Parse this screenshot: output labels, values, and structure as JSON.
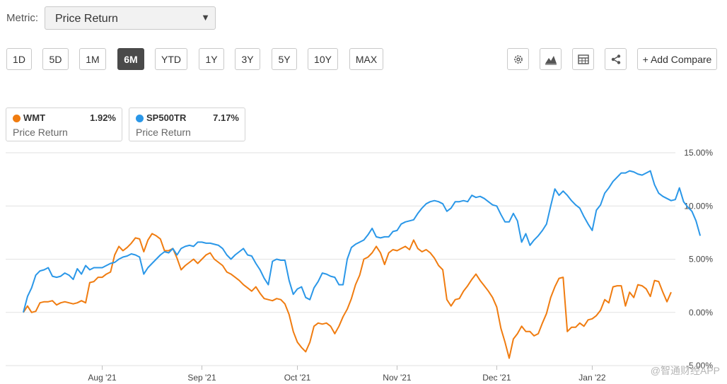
{
  "metric": {
    "label": "Metric:",
    "value": "Price Return"
  },
  "ranges": [
    {
      "label": "1D",
      "active": false
    },
    {
      "label": "5D",
      "active": false
    },
    {
      "label": "1M",
      "active": false
    },
    {
      "label": "6M",
      "active": true
    },
    {
      "label": "YTD",
      "active": false
    },
    {
      "label": "1Y",
      "active": false
    },
    {
      "label": "3Y",
      "active": false
    },
    {
      "label": "5Y",
      "active": false
    },
    {
      "label": "10Y",
      "active": false
    },
    {
      "label": "MAX",
      "active": false
    }
  ],
  "tools": {
    "icons": [
      "gear-icon",
      "mountain-chart-icon",
      "table-icon",
      "share-icon"
    ],
    "add_compare": "+ Add Compare"
  },
  "legend": [
    {
      "ticker": "WMT",
      "pct": "1.92%",
      "sub": "Price Return",
      "color": "#f07c10"
    },
    {
      "ticker": "SP500TR",
      "pct": "7.17%",
      "sub": "Price Return",
      "color": "#2a97e8"
    }
  ],
  "watermark": "@智通财经APP",
  "chart_data": {
    "type": "line",
    "yticks": [
      "15.00%",
      "10.00%",
      "5.00%",
      "0.00%",
      "-5.00%"
    ],
    "ylim": [
      -5,
      15
    ],
    "xtick_labels": [
      "Aug '21",
      "Sep '21",
      "Oct '21",
      "Nov '21",
      "Dec '21",
      "Jan '22"
    ],
    "xtick_index": [
      19,
      43,
      66,
      90,
      114,
      137
    ],
    "grid": true,
    "series": [
      {
        "name": "WMT",
        "color": "#f07c10",
        "values": [
          0,
          0.6,
          0,
          0.1,
          0.9,
          1.0,
          1.0,
          1.1,
          0.7,
          0.9,
          1.0,
          0.9,
          0.8,
          0.9,
          1.1,
          0.9,
          2.8,
          2.9,
          3.3,
          3.3,
          3.6,
          3.8,
          5.4,
          6.2,
          5.8,
          6.1,
          6.5,
          7.0,
          6.9,
          5.7,
          6.8,
          7.4,
          7.2,
          6.9,
          5.8,
          5.8,
          6.0,
          5.1,
          4.0,
          4.4,
          4.7,
          5.0,
          4.6,
          5.0,
          5.4,
          5.6,
          5.0,
          4.7,
          4.4,
          3.8,
          3.6,
          3.3,
          3.0,
          2.6,
          2.3,
          2.0,
          2.4,
          1.8,
          1.3,
          1.2,
          1.1,
          1.3,
          1.2,
          0.8,
          -0.2,
          -1.8,
          -2.8,
          -3.3,
          -3.7,
          -2.8,
          -1.3,
          -1.0,
          -1.1,
          -1.0,
          -1.3,
          -2.0,
          -1.3,
          -0.4,
          0.3,
          1.3,
          2.6,
          3.5,
          5.0,
          5.2,
          5.6,
          6.2,
          5.6,
          4.5,
          5.6,
          5.9,
          5.8,
          6.0,
          6.2,
          5.9,
          6.8,
          6.0,
          5.7,
          5.9,
          5.6,
          5.1,
          4.4,
          4.0,
          1.2,
          0.6,
          1.2,
          1.3,
          2.0,
          2.5,
          3.1,
          3.6,
          3.0,
          2.5,
          2.0,
          1.4,
          0.5,
          -1.5,
          -2.8,
          -4.3,
          -2.5,
          -2.0,
          -1.3,
          -1.8,
          -1.8,
          -2.2,
          -2.0,
          -1.0,
          -0.1,
          1.4,
          2.4,
          3.2,
          3.3,
          -1.8,
          -1.4,
          -1.4,
          -1.0,
          -1.3,
          -0.7,
          -0.6,
          -0.3,
          0.2,
          1.2,
          0.9,
          2.4,
          2.5,
          2.5,
          0.6,
          1.9,
          1.4,
          2.6,
          2.5,
          2.2,
          1.5,
          3.0,
          2.9,
          1.9,
          1.0,
          1.9
        ]
      },
      {
        "name": "SP500TR",
        "color": "#2a97e8",
        "values": [
          0,
          1.5,
          2.3,
          3.5,
          3.9,
          4.0,
          4.2,
          3.4,
          3.3,
          3.4,
          3.7,
          3.5,
          3.1,
          4.1,
          3.6,
          4.4,
          4.0,
          4.2,
          4.2,
          4.2,
          4.4,
          4.6,
          4.7,
          5.0,
          5.2,
          5.3,
          5.5,
          5.4,
          5.2,
          3.6,
          4.2,
          4.6,
          5.0,
          5.4,
          5.7,
          5.6,
          6.0,
          5.4,
          6.0,
          6.2,
          6.3,
          6.2,
          6.6,
          6.6,
          6.5,
          6.5,
          6.4,
          6.3,
          6.0,
          5.4,
          5.0,
          5.4,
          5.7,
          6.0,
          5.4,
          5.3,
          4.6,
          4.0,
          3.2,
          2.6,
          4.8,
          5.0,
          4.9,
          4.9,
          3.0,
          1.7,
          2.2,
          2.4,
          1.4,
          1.2,
          2.3,
          2.9,
          3.7,
          3.6,
          3.4,
          3.3,
          2.6,
          2.6,
          5.0,
          6.1,
          6.4,
          6.6,
          6.8,
          7.3,
          7.9,
          7.1,
          7.0,
          7.1,
          7.1,
          7.6,
          7.7,
          8.3,
          8.5,
          8.6,
          8.7,
          9.3,
          9.8,
          10.2,
          10.4,
          10.5,
          10.4,
          10.2,
          9.5,
          9.8,
          10.4,
          10.4,
          10.5,
          10.4,
          11.0,
          10.8,
          10.9,
          10.7,
          10.4,
          10.1,
          10.0,
          9.2,
          8.5,
          8.5,
          9.3,
          8.6,
          6.6,
          7.4,
          6.3,
          6.8,
          7.2,
          7.7,
          8.3,
          10.0,
          11.6,
          11.0,
          11.4,
          11.0,
          10.5,
          10.1,
          9.8,
          9.0,
          8.3,
          7.7,
          9.6,
          10.1,
          11.2,
          11.7,
          12.3,
          12.7,
          13.1,
          13.1,
          13.3,
          13.2,
          13.0,
          12.9,
          13.1,
          13.3,
          12.0,
          11.2,
          10.9,
          10.7,
          10.5,
          10.6,
          11.7,
          10.4,
          9.9,
          9.5,
          8.6,
          7.2
        ]
      }
    ]
  }
}
